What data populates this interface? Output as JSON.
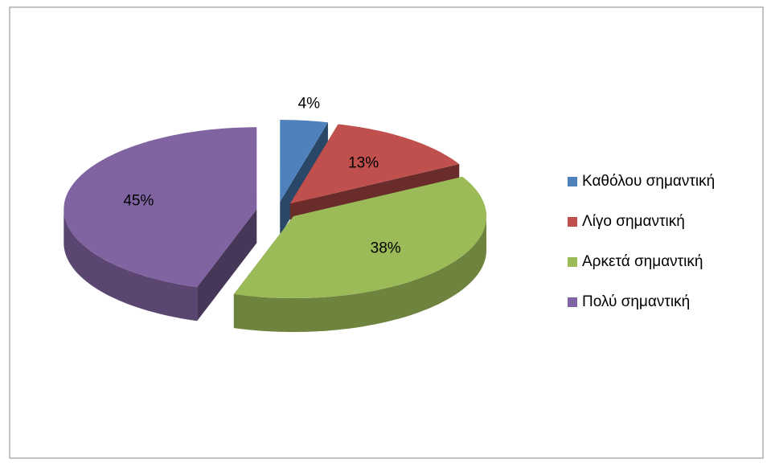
{
  "chart_data": {
    "type": "pie",
    "categories": [
      "Καθόλου σημαντική",
      "Λίγο σημαντική",
      "Αρκετά σημαντική",
      "Πολύ σημαντική"
    ],
    "values": [
      4,
      13,
      38,
      45
    ],
    "value_labels": [
      "4%",
      "13%",
      "38%",
      "45%"
    ],
    "colors": [
      "#4f81bd",
      "#c0504d",
      "#9bbb59",
      "#8064a2"
    ],
    "legend": "right"
  }
}
